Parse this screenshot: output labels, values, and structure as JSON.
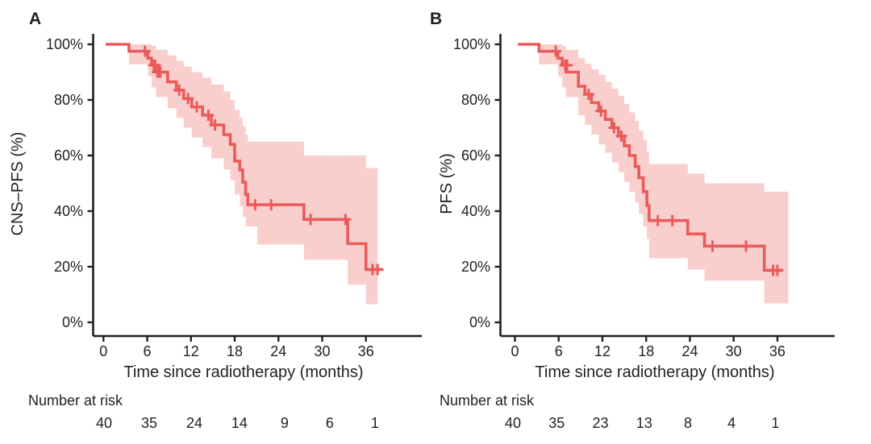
{
  "figure": {
    "background": "#ffffff",
    "text_color": "#231f20",
    "axis_color": "#231f20",
    "curve_color": "#ea5b59",
    "band_color": "#f9cfcd",
    "panels": [
      {
        "letter": "A",
        "y_axis_label": "CNS–PFS (%)",
        "x_axis_label": "Time since radiotherapy (months)",
        "risk_header": "Number at risk",
        "y_tick_labels": [
          "100%",
          "80%",
          "60%",
          "40%",
          "20%",
          "0%"
        ],
        "x_tick_labels": [
          "0",
          "6",
          "12",
          "18",
          "24",
          "30",
          "36"
        ],
        "number_at_risk": [
          "40",
          "35",
          "24",
          "14",
          "9",
          "6",
          "1"
        ]
      },
      {
        "letter": "B",
        "y_axis_label": "PFS (%)",
        "x_axis_label": "Time since radiotherapy (months)",
        "risk_header": "Number at risk",
        "y_tick_labels": [
          "100%",
          "80%",
          "60%",
          "40%",
          "20%",
          "0%"
        ],
        "x_tick_labels": [
          "0",
          "6",
          "12",
          "18",
          "24",
          "30",
          "36"
        ],
        "number_at_risk": [
          "40",
          "35",
          "23",
          "13",
          "8",
          "4",
          "1"
        ]
      }
    ]
  },
  "chart_data": [
    {
      "type": "line",
      "subtype": "kaplan-meier-step",
      "panel": "A",
      "title": "",
      "xlabel": "Time since radiotherapy (months)",
      "ylabel": "CNS–PFS (%)",
      "xlim": [
        -1.5,
        44
      ],
      "ylim": [
        0,
        100
      ],
      "x_ticks": [
        0,
        6,
        12,
        18,
        24,
        30,
        36
      ],
      "y_ticks_percent": [
        100,
        80,
        60,
        40,
        20,
        0
      ],
      "grid": false,
      "legend": "none",
      "curve_start": 0.3,
      "curve_end": 38.4,
      "band_end": 37.6,
      "steps": [
        [
          0.3,
          100
        ],
        [
          3.5,
          97.5
        ],
        [
          6.1,
          95
        ],
        [
          6.6,
          92.5
        ],
        [
          7.2,
          90
        ],
        [
          8.8,
          86.5
        ],
        [
          10.0,
          83.5
        ],
        [
          11.0,
          80.5
        ],
        [
          12.1,
          77.5
        ],
        [
          13.6,
          74.5
        ],
        [
          14.8,
          71
        ],
        [
          16.5,
          67.5
        ],
        [
          17.4,
          64
        ],
        [
          18.0,
          58
        ],
        [
          18.7,
          54.8
        ],
        [
          19.1,
          50.4
        ],
        [
          19.5,
          46
        ],
        [
          19.8,
          42.3
        ],
        [
          27.5,
          37
        ],
        [
          33.5,
          28.3
        ],
        [
          36.0,
          19
        ]
      ],
      "censors": [
        [
          5.7,
          97.5
        ],
        [
          6.9,
          92.5
        ],
        [
          7.1,
          92.5
        ],
        [
          7.4,
          90
        ],
        [
          7.6,
          90
        ],
        [
          7.8,
          90
        ],
        [
          10.4,
          83.5
        ],
        [
          11.6,
          80.5
        ],
        [
          12.8,
          77.5
        ],
        [
          14.4,
          74.5
        ],
        [
          15.3,
          71
        ],
        [
          20.8,
          42.3
        ],
        [
          23.0,
          42.3
        ],
        [
          28.4,
          37
        ],
        [
          33.2,
          37
        ],
        [
          36.9,
          19
        ],
        [
          37.6,
          19
        ]
      ],
      "ci_band": [
        [
          3.5,
          92.8,
          100
        ],
        [
          6.1,
          88.5,
          100
        ],
        [
          6.6,
          84.5,
          99.5
        ],
        [
          7.2,
          81,
          98
        ],
        [
          8.8,
          77,
          96
        ],
        [
          10.0,
          73.5,
          94
        ],
        [
          11.0,
          70,
          92
        ],
        [
          12.1,
          66.5,
          90
        ],
        [
          13.6,
          63,
          88
        ],
        [
          14.8,
          59,
          85.5
        ],
        [
          16.5,
          55,
          83
        ],
        [
          17.4,
          51,
          80
        ],
        [
          18.0,
          46,
          76.5
        ],
        [
          18.7,
          42,
          73.5
        ],
        [
          19.1,
          38,
          70.5
        ],
        [
          19.5,
          34.5,
          67.5
        ],
        [
          19.8,
          34.5,
          65
        ],
        [
          21.1,
          28,
          65
        ],
        [
          27.5,
          22.5,
          60
        ],
        [
          33.5,
          13.5,
          60
        ],
        [
          36.0,
          6.5,
          55.5
        ]
      ],
      "number_at_risk": {
        "times": [
          0,
          6,
          12,
          18,
          24,
          30,
          36
        ],
        "counts": [
          40,
          35,
          24,
          14,
          9,
          6,
          1
        ]
      }
    },
    {
      "type": "line",
      "subtype": "kaplan-meier-step",
      "panel": "B",
      "title": "",
      "xlabel": "Time since radiotherapy (months)",
      "ylabel": "PFS (%)",
      "xlim": [
        -1.5,
        44
      ],
      "ylim": [
        0,
        100
      ],
      "x_ticks": [
        0,
        6,
        12,
        18,
        24,
        30,
        36
      ],
      "y_ticks_percent": [
        100,
        80,
        60,
        40,
        20,
        0
      ],
      "grid": false,
      "legend": "none",
      "curve_start": 0.4,
      "curve_end": 36.8,
      "band_end": 37.5,
      "steps": [
        [
          0.4,
          100
        ],
        [
          3.3,
          97.5
        ],
        [
          5.9,
          95
        ],
        [
          6.5,
          92.5
        ],
        [
          7.0,
          90
        ],
        [
          8.7,
          84.9
        ],
        [
          9.6,
          82
        ],
        [
          10.5,
          79
        ],
        [
          11.5,
          76
        ],
        [
          12.4,
          73
        ],
        [
          13.3,
          70
        ],
        [
          14.2,
          67
        ],
        [
          15.0,
          63.5
        ],
        [
          15.7,
          60
        ],
        [
          16.5,
          56
        ],
        [
          17.0,
          52
        ],
        [
          17.6,
          47
        ],
        [
          18.1,
          42
        ],
        [
          18.4,
          36.6
        ],
        [
          23.7,
          31.8
        ],
        [
          26.0,
          27.4
        ],
        [
          34.2,
          18.7
        ]
      ],
      "censors": [
        [
          5.6,
          97.5
        ],
        [
          6.9,
          92.5
        ],
        [
          7.15,
          92.5
        ],
        [
          10.1,
          82
        ],
        [
          11.8,
          76
        ],
        [
          13.6,
          70
        ],
        [
          14.6,
          67
        ],
        [
          19.6,
          36.6
        ],
        [
          21.6,
          36.6
        ],
        [
          27.1,
          27.4
        ],
        [
          31.7,
          27.4
        ],
        [
          35.4,
          18.7
        ],
        [
          36.0,
          18.7
        ]
      ],
      "ci_band": [
        [
          3.3,
          92.8,
          100
        ],
        [
          5.9,
          88.5,
          100
        ],
        [
          6.5,
          84.5,
          99.5
        ],
        [
          7.0,
          81,
          98
        ],
        [
          8.7,
          74.5,
          95
        ],
        [
          9.6,
          71,
          93
        ],
        [
          10.5,
          67.5,
          91
        ],
        [
          11.5,
          64,
          89
        ],
        [
          12.4,
          61,
          86.5
        ],
        [
          13.3,
          57.5,
          84
        ],
        [
          14.2,
          54,
          81.5
        ],
        [
          15.0,
          50.5,
          78.5
        ],
        [
          15.7,
          47,
          75.5
        ],
        [
          16.5,
          43,
          72.5
        ],
        [
          17.0,
          39,
          69
        ],
        [
          17.6,
          34.5,
          65.5
        ],
        [
          18.1,
          30,
          61.5
        ],
        [
          18.4,
          23,
          57
        ],
        [
          23.7,
          19,
          53.5
        ],
        [
          26.0,
          15,
          50
        ],
        [
          34.2,
          6.8,
          47
        ]
      ],
      "number_at_risk": {
        "times": [
          0,
          6,
          12,
          18,
          24,
          30,
          36
        ],
        "counts": [
          40,
          35,
          23,
          13,
          8,
          4,
          1
        ]
      }
    }
  ]
}
